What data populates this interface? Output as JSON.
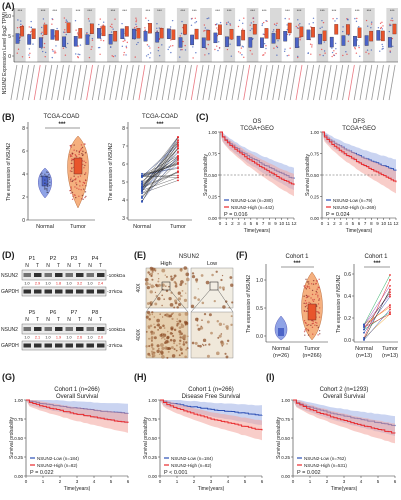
{
  "panels": {
    "A": {
      "label": "(A)",
      "ylabel": "NSUN2 Expression Level (log2 TPM)",
      "yticks": [
        "10",
        "5",
        "0"
      ]
    },
    "B": {
      "label": "(B)",
      "left_title": "TCGA-COAD",
      "right_title": "TCGA-COAD",
      "ylabel": "The expression of NSUN2",
      "sig": "***",
      "xcats": [
        "Normal",
        "Tumor"
      ],
      "left_yticks": [
        "8",
        "6",
        "4",
        "2",
        "0"
      ],
      "right_yticks": [
        "8",
        "7",
        "6",
        "5",
        "4",
        "3"
      ]
    },
    "C": {
      "label": "(C)",
      "os": {
        "title1": "OS",
        "title2": "TCGA+GEO",
        "low": "NSUN2-Low (n=280)",
        "high": "NSUN2-High (n=442)",
        "p": "P = 0.016"
      },
      "dfs": {
        "title1": "DFS",
        "title2": "TCGA+GEO",
        "low": "NSUN2-Low (n=79)",
        "high": "NSUN2-High (n=269)",
        "p": "P = 0.024"
      },
      "ylabel": "Survival probability",
      "xlabel": "Time(years)",
      "yticks": [
        "1.00",
        "0.75",
        "0.50",
        "0.25",
        "0.00"
      ],
      "xticks": [
        "0",
        "1",
        "2",
        "3",
        "4",
        "5",
        "6",
        "7",
        "8",
        "9",
        "10",
        "11",
        "12"
      ]
    },
    "D": {
      "label": "(D)",
      "top_pairs": [
        "P1",
        "P2",
        "P3",
        "P4"
      ],
      "bottom_pairs": [
        "P5",
        "P6",
        "P7",
        "P8"
      ],
      "nt": [
        "N",
        "T",
        "N",
        "T",
        "N",
        "T",
        "N",
        "T"
      ],
      "nsun2": "NSUN2",
      "gapdh": "GAPDH",
      "kda100": "-100kDa",
      "kda37": "-37kDa",
      "top_ratios": [
        "1.0",
        "2.9",
        "1.0",
        "1.8",
        "1.0",
        "3.2",
        "1.0",
        "2.4"
      ],
      "bottom_ratios": [
        "1.0",
        "2.1",
        "1.0",
        "1.9",
        "1.0",
        "2.6",
        "1.0",
        "2.0"
      ]
    },
    "E": {
      "label": "(E)",
      "title": "NSUN2",
      "high": "High",
      "low": "Low",
      "mag40": "40X",
      "mag400": "400X"
    },
    "F": {
      "label": "(F)",
      "title_left": "Cohort 1",
      "title_right": "Cohort 1",
      "sig": "***",
      "ylabel": "The expression of NSUN2",
      "left_x": [
        "Normal",
        "Tumor"
      ],
      "left_n": [
        "(n=26)",
        "(n=266)"
      ],
      "right_x": [
        "Normal",
        "Tumor"
      ],
      "right_n": [
        "(n=13)",
        "(n=13)"
      ],
      "left_yticks": [
        "1.0",
        "0.5",
        "0.0"
      ],
      "right_yticks": [
        "0.6",
        "0.4",
        "0.2",
        "0.0"
      ]
    },
    "G": {
      "label": "(G)",
      "title1": "Cohort 1 (n=266)",
      "title2": "Overall Survival",
      "low": "NSUN2-Low (n=184)",
      "high": "NSUN2-High (n=82)",
      "p": "P = 0.022"
    },
    "H": {
      "label": "(H)",
      "title1": "Cohort 1 (n=266)",
      "title2": "Disease Free Survival",
      "low": "NSUN2-Low (n=184)",
      "high": "NSUN2-High (n=82)",
      "p": "P < 0.001"
    },
    "I": {
      "label": "(I)",
      "title1": "Cohort 2 (n=1293)",
      "title2": "Overall Survival",
      "low": "NSUN2-Low (n=762)",
      "high": "NSUN2-High (n=531)",
      "p": "P = 0.002"
    },
    "km_common": {
      "ylabel": "Survival probability",
      "xlabel": "Time(years)",
      "yticks": [
        "1.00",
        "0.75",
        "0.50",
        "0.25",
        "0.00"
      ],
      "xticks": [
        "0",
        "1",
        "2",
        "3",
        "4",
        "5",
        "6"
      ]
    }
  },
  "colors": {
    "low": "#2c4fb5",
    "high": "#e8282b",
    "lowband": "#9fb0e6",
    "highband": "#f3a49c",
    "tumorbox": "#e8552c",
    "normalbox": "#4b63c7"
  },
  "chart_data": [
    {
      "type": "box",
      "id": "B-left",
      "categories": [
        "Normal",
        "Tumor"
      ],
      "medians": [
        4.8,
        5.6
      ],
      "ylim": [
        0,
        8
      ]
    },
    {
      "type": "line",
      "id": "C-OS",
      "series": [
        {
          "name": "NSUN2-Low (n=280)",
          "start": 1.0,
          "end": 0.45
        },
        {
          "name": "NSUN2-High (n=442)",
          "start": 1.0,
          "end": 0.38
        }
      ],
      "xlim": [
        0,
        12
      ],
      "ylim": [
        0,
        1
      ]
    },
    {
      "type": "line",
      "id": "C-DFS",
      "series": [
        {
          "name": "NSUN2-Low (n=79)",
          "start": 1.0,
          "end": 0.55
        },
        {
          "name": "NSUN2-High (n=269)",
          "start": 1.0,
          "end": 0.42
        }
      ],
      "xlim": [
        0,
        12
      ],
      "ylim": [
        0,
        1
      ]
    },
    {
      "type": "line",
      "id": "G",
      "series": [
        {
          "name": "NSUN2-Low (n=184)",
          "start": 1.0,
          "end": 0.82
        },
        {
          "name": "NSUN2-High (n=82)",
          "start": 1.0,
          "end": 0.7
        }
      ],
      "xlim": [
        0,
        6
      ],
      "ylim": [
        0,
        1
      ]
    },
    {
      "type": "line",
      "id": "H",
      "series": [
        {
          "name": "NSUN2-Low (n=184)",
          "start": 1.0,
          "end": 0.8
        },
        {
          "name": "NSUN2-High (n=82)",
          "start": 1.0,
          "end": 0.6
        }
      ],
      "xlim": [
        0,
        6
      ],
      "ylim": [
        0,
        1
      ]
    },
    {
      "type": "line",
      "id": "I",
      "series": [
        {
          "name": "NSUN2-Low (n=762)",
          "start": 1.0,
          "end": 0.66
        },
        {
          "name": "NSUN2-High (n=531)",
          "start": 1.0,
          "end": 0.56
        }
      ],
      "xlim": [
        0,
        6
      ],
      "ylim": [
        0,
        1
      ]
    }
  ]
}
